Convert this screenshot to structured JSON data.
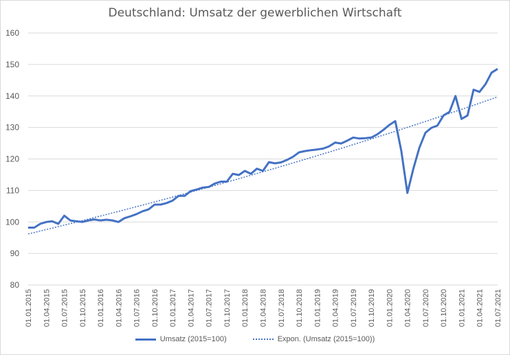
{
  "chart_data": {
    "type": "line",
    "title": "Deutschland: Umsatz der gewerblichen Wirtschaft",
    "xlabel": "",
    "ylabel": "",
    "ylim": [
      80,
      160
    ],
    "yticks": [
      80,
      90,
      100,
      110,
      120,
      130,
      140,
      150,
      160
    ],
    "grid": true,
    "legend_position": "bottom",
    "x_tick_labels": [
      "01.01.2015",
      "01.04.2015",
      "01.07.2015",
      "01.10.2015",
      "01.01.2016",
      "01.04.2016",
      "01.07.2016",
      "01.10.2016",
      "01.01.2017",
      "01.04.2017",
      "01.07.2017",
      "01.10.2017",
      "01.01.2018",
      "01.04.2018",
      "01.07.2018",
      "01.10.2018",
      "01.01.2019",
      "01.04.2019",
      "01.07.2019",
      "01.10.2019",
      "01.01.2020",
      "01.04.2020",
      "01.07.2020",
      "01.10.2020",
      "01.01.2021",
      "01.04.2021",
      "01.07.2021"
    ],
    "x": [
      "01.01.2015",
      "01.02.2015",
      "01.03.2015",
      "01.04.2015",
      "01.05.2015",
      "01.06.2015",
      "01.07.2015",
      "01.08.2015",
      "01.09.2015",
      "01.10.2015",
      "01.11.2015",
      "01.12.2015",
      "01.01.2016",
      "01.02.2016",
      "01.03.2016",
      "01.04.2016",
      "01.05.2016",
      "01.06.2016",
      "01.07.2016",
      "01.08.2016",
      "01.09.2016",
      "01.10.2016",
      "01.11.2016",
      "01.12.2016",
      "01.01.2017",
      "01.02.2017",
      "01.03.2017",
      "01.04.2017",
      "01.05.2017",
      "01.06.2017",
      "01.07.2017",
      "01.08.2017",
      "01.09.2017",
      "01.10.2017",
      "01.11.2017",
      "01.12.2017",
      "01.01.2018",
      "01.02.2018",
      "01.03.2018",
      "01.04.2018",
      "01.05.2018",
      "01.06.2018",
      "01.07.2018",
      "01.08.2018",
      "01.09.2018",
      "01.10.2018",
      "01.11.2018",
      "01.12.2018",
      "01.01.2019",
      "01.02.2019",
      "01.03.2019",
      "01.04.2019",
      "01.05.2019",
      "01.06.2019",
      "01.07.2019",
      "01.08.2019",
      "01.09.2019",
      "01.10.2019",
      "01.11.2019",
      "01.12.2019",
      "01.01.2020",
      "01.02.2020",
      "01.03.2020",
      "01.04.2020",
      "01.05.2020",
      "01.06.2020",
      "01.07.2020",
      "01.08.2020",
      "01.09.2020",
      "01.10.2020",
      "01.11.2020",
      "01.12.2020",
      "01.01.2021",
      "01.02.2021",
      "01.03.2021",
      "01.04.2021",
      "01.05.2021",
      "01.06.2021",
      "01.07.2021"
    ],
    "series": [
      {
        "name": "Umsatz (2015=100)",
        "style": "solid",
        "color": "#4472C4",
        "values": [
          98.2,
          98.2,
          99.4,
          100.0,
          100.2,
          99.4,
          102.0,
          100.5,
          100.2,
          100.0,
          100.5,
          100.8,
          100.5,
          100.7,
          100.5,
          100.0,
          101.2,
          101.8,
          102.5,
          103.4,
          104.0,
          105.5,
          105.5,
          106.0,
          106.8,
          108.3,
          108.3,
          109.8,
          110.3,
          110.9,
          111.1,
          112.2,
          112.8,
          112.8,
          115.3,
          114.9,
          116.2,
          115.3,
          116.9,
          116.2,
          119.0,
          118.6,
          118.9,
          119.7,
          120.7,
          122.1,
          122.5,
          122.8,
          123.0,
          123.3,
          124.0,
          125.2,
          124.9,
          125.8,
          126.8,
          126.5,
          126.6,
          126.8,
          127.8,
          129.2,
          130.8,
          132.0,
          122.5,
          109.2,
          116.9,
          123.6,
          128.3,
          129.9,
          130.6,
          133.8,
          134.9,
          140.0,
          132.7,
          133.8,
          142.0,
          141.3,
          143.8,
          147.4,
          148.6
        ]
      },
      {
        "name": "Expon. (Umsatz (2015=100))",
        "style": "dotted",
        "color": "#4472C4",
        "trend_start": 96.2,
        "trend_end": 139.7
      }
    ]
  }
}
